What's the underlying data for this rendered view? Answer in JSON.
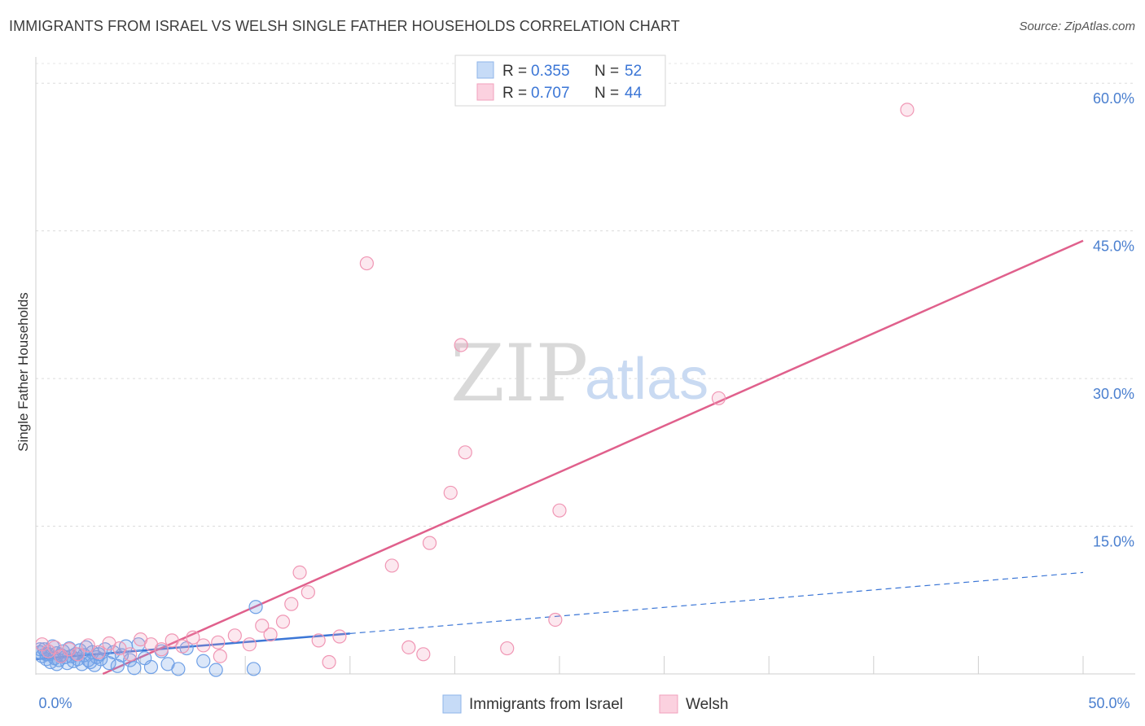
{
  "title": "IMMIGRANTS FROM ISRAEL VS WELSH SINGLE FATHER HOUSEHOLDS CORRELATION CHART",
  "source": "Source: ZipAtlas.com",
  "watermark": {
    "zip": "ZIP",
    "atlas": "atlas"
  },
  "colors": {
    "blue": "#6fa0e6",
    "blue_line": "#3b76d6",
    "pink": "#f096b4",
    "pink_line": "#e0608c"
  },
  "chart_data": {
    "type": "scatter",
    "title": "IMMIGRANTS FROM ISRAEL VS WELSH SINGLE FATHER HOUSEHOLDS CORRELATION CHART",
    "xlabel": "",
    "ylabel": "Single Father Households",
    "xlim": [
      0,
      50
    ],
    "ylim": [
      0,
      62
    ],
    "x_tick_labels": [
      "0.0%",
      "50.0%"
    ],
    "y_tick_labels": [
      "15.0%",
      "30.0%",
      "45.0%",
      "60.0%"
    ],
    "y_ticks": [
      15,
      30,
      45,
      60
    ],
    "legend": [
      {
        "series": "Immigrants from Israel",
        "r_label": "R =",
        "r": "0.355",
        "n_label": "N =",
        "n": "52"
      },
      {
        "series": "Welsh",
        "r_label": "R =",
        "r": "0.707",
        "n_label": "N =",
        "n": "44"
      }
    ],
    "series": [
      {
        "name": "Immigrants from Israel",
        "color": "#6fa0e6",
        "points": [
          [
            0.2,
            2.2
          ],
          [
            0.3,
            1.8
          ],
          [
            0.4,
            2.5
          ],
          [
            0.5,
            1.5
          ],
          [
            0.6,
            2.0
          ],
          [
            0.7,
            1.2
          ],
          [
            0.8,
            2.8
          ],
          [
            0.9,
            1.6
          ],
          [
            1.0,
            2.1
          ],
          [
            1.1,
            1.4
          ],
          [
            1.2,
            1.9
          ],
          [
            1.3,
            2.3
          ],
          [
            1.4,
            1.7
          ],
          [
            1.5,
            1.1
          ],
          [
            1.6,
            2.6
          ],
          [
            1.7,
            1.8
          ],
          [
            1.8,
            1.3
          ],
          [
            1.9,
            2.0
          ],
          [
            2.0,
            1.5
          ],
          [
            2.1,
            2.4
          ],
          [
            2.2,
            1.0
          ],
          [
            2.3,
            1.9
          ],
          [
            2.4,
            2.7
          ],
          [
            2.5,
            1.4
          ],
          [
            2.6,
            1.2
          ],
          [
            2.7,
            2.2
          ],
          [
            2.8,
            0.9
          ],
          [
            2.9,
            1.7
          ],
          [
            3.0,
            2.0
          ],
          [
            3.1,
            1.5
          ],
          [
            3.3,
            2.5
          ],
          [
            3.5,
            1.1
          ],
          [
            3.7,
            2.2
          ],
          [
            3.9,
            0.8
          ],
          [
            4.1,
            1.9
          ],
          [
            4.3,
            2.8
          ],
          [
            4.5,
            1.4
          ],
          [
            4.7,
            0.6
          ],
          [
            4.9,
            3.0
          ],
          [
            5.2,
            1.6
          ],
          [
            5.5,
            0.7
          ],
          [
            6.0,
            2.3
          ],
          [
            6.3,
            1.0
          ],
          [
            6.8,
            0.5
          ],
          [
            7.2,
            2.6
          ],
          [
            8.0,
            1.3
          ],
          [
            8.6,
            0.4
          ],
          [
            10.4,
            0.5
          ],
          [
            0.2,
            2.5
          ],
          [
            1.0,
            1.0
          ],
          [
            0.5,
            2.0
          ],
          [
            10.5,
            6.8
          ]
        ],
        "trend": {
          "x": [
            0,
            15
          ],
          "y": [
            1.5,
            4.1
          ],
          "dashed_to": {
            "x": 50,
            "y": 10.3
          }
        }
      },
      {
        "name": "Welsh",
        "color": "#f096b4",
        "points": [
          [
            0.3,
            3.0
          ],
          [
            0.6,
            2.3
          ],
          [
            0.9,
            2.7
          ],
          [
            1.2,
            1.8
          ],
          [
            1.6,
            2.5
          ],
          [
            2.0,
            2.0
          ],
          [
            2.5,
            2.9
          ],
          [
            3.0,
            2.2
          ],
          [
            3.5,
            3.1
          ],
          [
            4.0,
            2.6
          ],
          [
            4.5,
            2.0
          ],
          [
            5.0,
            3.5
          ],
          [
            5.5,
            3.0
          ],
          [
            6.0,
            2.5
          ],
          [
            6.5,
            3.4
          ],
          [
            7.0,
            2.8
          ],
          [
            7.5,
            3.7
          ],
          [
            8.0,
            2.9
          ],
          [
            8.7,
            3.2
          ],
          [
            9.5,
            3.9
          ],
          [
            10.2,
            3.0
          ],
          [
            10.8,
            4.9
          ],
          [
            11.2,
            4.0
          ],
          [
            11.8,
            5.3
          ],
          [
            12.2,
            7.1
          ],
          [
            12.6,
            10.3
          ],
          [
            13.0,
            8.3
          ],
          [
            13.5,
            3.4
          ],
          [
            14.0,
            1.2
          ],
          [
            14.5,
            3.8
          ],
          [
            15.8,
            41.7
          ],
          [
            17.0,
            11.0
          ],
          [
            17.8,
            2.7
          ],
          [
            18.5,
            2.0
          ],
          [
            18.8,
            13.3
          ],
          [
            19.8,
            18.4
          ],
          [
            20.3,
            33.4
          ],
          [
            20.5,
            22.5
          ],
          [
            22.5,
            2.6
          ],
          [
            24.8,
            5.5
          ],
          [
            25.0,
            16.6
          ],
          [
            32.6,
            28.0
          ],
          [
            41.6,
            57.3
          ],
          [
            8.8,
            1.8
          ]
        ],
        "trend": {
          "x": [
            3.2,
            50
          ],
          "y": [
            0,
            44.0
          ]
        }
      }
    ]
  },
  "bottom_legend": [
    {
      "label": "Immigrants from Israel"
    },
    {
      "label": "Welsh"
    }
  ]
}
